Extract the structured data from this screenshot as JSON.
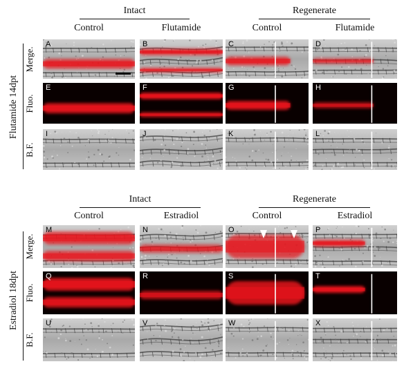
{
  "blocks": [
    {
      "condition": "Flutamide 14dpt",
      "group_left": "Intact",
      "group_right": "Regenerate",
      "col_labels": [
        "Control",
        "Flutamide",
        "Control",
        "Flutamide"
      ],
      "row_labels": [
        "Merge.",
        "Fluo.",
        "B.F."
      ],
      "panel_letters": [
        "A",
        "B",
        "C",
        "D",
        "E",
        "F",
        "G",
        "H",
        "I",
        "J",
        "K",
        "L"
      ]
    },
    {
      "condition": "Estradiol 18dpt",
      "group_left": "Intact",
      "group_right": "Regenerate",
      "col_labels": [
        "Control",
        "Estradiol",
        "Control",
        "Estradiol"
      ],
      "row_labels": [
        "Merge.",
        "Fluo.",
        "B.F."
      ],
      "panel_letters": [
        "M",
        "N",
        "O",
        "P",
        "Q",
        "R",
        "S",
        "T",
        "U",
        "V",
        "W",
        "X"
      ]
    }
  ],
  "colors": {
    "fluorescence": "#e8131c",
    "background": "#ffffff",
    "text": "#111111"
  }
}
